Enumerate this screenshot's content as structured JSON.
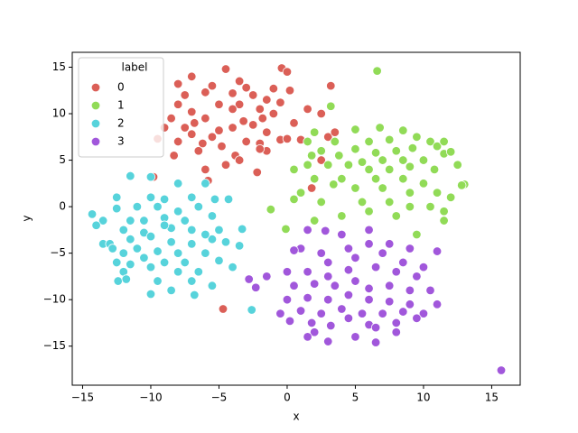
{
  "chart_data": {
    "type": "scatter",
    "xlabel": "x",
    "ylabel": "y",
    "xlim": [
      -15.76,
      17.09
    ],
    "ylim": [
      -19.2,
      16.6
    ],
    "xticks": [
      {
        "value": -15,
        "label": "−15"
      },
      {
        "value": -10,
        "label": "−10"
      },
      {
        "value": -5,
        "label": "−5"
      },
      0,
      5,
      10,
      15
    ],
    "yticks": [
      {
        "value": -15,
        "label": "−15"
      },
      {
        "value": -10,
        "label": "−10"
      },
      {
        "value": -5,
        "label": "−5"
      },
      0,
      5,
      10,
      15
    ],
    "grid": false,
    "legend_title": "label",
    "legend_position": "upper left",
    "series": [
      {
        "name": "0",
        "color": "#db5f57",
        "x": [
          -4.5,
          -7,
          -0.4,
          0,
          -3.5,
          -8,
          -5.5,
          -3,
          -1,
          0.2,
          3.2,
          -6,
          -7.5,
          -4,
          -2.5,
          -1.5,
          -8,
          -5,
          -3.5,
          -0.5,
          -7,
          -4,
          -2,
          -1,
          -8.5,
          -6,
          -3.2,
          -1.8,
          2.5,
          -9,
          -7.5,
          -5,
          -4,
          -2.5,
          0.5,
          -7,
          -5.5,
          -3,
          -1.5,
          -9.5,
          -8,
          -6.2,
          -4.8,
          -2,
          -0.5,
          1,
          3,
          -8.3,
          -6.5,
          -3.8,
          -1.5,
          -4.5,
          -6,
          -3.5,
          -2.2,
          -5.8,
          -9.8,
          1.8,
          2.5,
          3.5,
          -4.7,
          -2,
          0,
          1.5,
          -6.8
        ],
        "values": [
          14.8,
          14,
          14.9,
          14.5,
          13.5,
          13.2,
          13,
          12.8,
          12.7,
          12.5,
          13,
          12.3,
          12,
          12.2,
          12,
          11.5,
          11,
          11,
          11,
          11.2,
          10.2,
          10.5,
          10.5,
          10,
          9.5,
          9.5,
          9.2,
          9.5,
          10,
          8.5,
          8.5,
          8.2,
          8.5,
          8.8,
          9,
          7.8,
          7.5,
          7,
          8,
          7.3,
          7,
          6.8,
          6.5,
          6.8,
          7.2,
          7.2,
          7.5,
          5.5,
          6,
          5.5,
          6,
          4.5,
          4,
          5,
          3.7,
          2.8,
          3.2,
          2,
          5,
          8,
          -11,
          6.2,
          7.3,
          10.5,
          9
        ]
      },
      {
        "name": "1",
        "color": "#91db57",
        "x": [
          6.6,
          3.2,
          5,
          6.8,
          2,
          8.5,
          1.5,
          3.5,
          6,
          7.5,
          9.5,
          10.5,
          11,
          11.5,
          2.5,
          5,
          6.5,
          8,
          9.2,
          11.5,
          12,
          1.8,
          3.8,
          5.5,
          7,
          8.5,
          10,
          12.5,
          0.5,
          3,
          4.5,
          6,
          7.5,
          9,
          10.8,
          2,
          4,
          6.5,
          8.5,
          10,
          13,
          12.8,
          3.4,
          5,
          7,
          9,
          11,
          12,
          1,
          2.5,
          5.5,
          7.5,
          9,
          10.5,
          11.5,
          -1.2,
          -0.1,
          2,
          4,
          6,
          8,
          11.5,
          9.5,
          1.5,
          0.5
        ],
        "values": [
          14.6,
          10.8,
          8.3,
          8.5,
          8,
          8.2,
          7,
          7,
          7,
          7.2,
          7.5,
          7,
          6.5,
          7,
          6,
          6.2,
          5.8,
          6,
          6.3,
          5.7,
          5.9,
          5.5,
          5.5,
          4.8,
          5,
          5,
          5,
          4.5,
          4,
          4.5,
          4.5,
          4,
          4,
          4.3,
          4,
          3,
          3,
          3,
          3,
          2.5,
          2.4,
          2.3,
          2.4,
          2,
          2,
          1.5,
          1.5,
          1,
          1.5,
          0.5,
          0.5,
          0.5,
          0,
          0,
          -0.5,
          -0.3,
          -2.4,
          -1.5,
          -1,
          -0.5,
          -1,
          -1.5,
          -3,
          4.5,
          0.8
        ]
      },
      {
        "name": "2",
        "color": "#57d3db",
        "x": [
          -11.5,
          -10,
          -8,
          -6,
          -12.5,
          -10,
          -9,
          -7,
          -5.3,
          -12.5,
          -11,
          -9.5,
          -8,
          -6.5,
          -14.3,
          -13.5,
          -11.5,
          -9,
          -7.5,
          -5.5,
          -3.3,
          -14,
          -12,
          -10.5,
          -8.5,
          -7,
          -5,
          -13.5,
          -11.5,
          -10,
          -8.5,
          -7,
          -5.5,
          -4.5,
          -13,
          -11,
          -9.5,
          -8,
          -6,
          -10.5,
          -9,
          -7.5,
          -5,
          -12.5,
          -12,
          -11.5,
          -10,
          -8,
          -6.5,
          -4,
          -12,
          -12.4,
          -11.8,
          -9.5,
          -7,
          -5.5,
          -10,
          -8.5,
          -6.8,
          -2.6,
          -4.3,
          -6,
          -9,
          -10.5,
          -3.5,
          -12.8
        ],
        "values": [
          3.3,
          3.2,
          2.5,
          2.5,
          1,
          1,
          0.8,
          1,
          0.8,
          -0.2,
          0,
          0,
          -0.5,
          0,
          -0.8,
          -1.5,
          -1.5,
          -1.2,
          -1.5,
          -1,
          -2.4,
          -2,
          -2.5,
          -2.8,
          -2.3,
          -2.5,
          -2.5,
          -4,
          -3.5,
          -3.2,
          -3.8,
          -4,
          -3.5,
          -3.8,
          -4,
          -4.5,
          -4.8,
          -5,
          -5,
          -5.5,
          -6,
          -6,
          -5.8,
          -6,
          -5,
          -6.2,
          -6.5,
          -7,
          -7,
          -6.5,
          -7,
          -8,
          -7.8,
          -8,
          -8,
          -8.5,
          -9.4,
          -9,
          -9.5,
          -11.1,
          0.8,
          -3,
          -2,
          -1.5,
          -4.2,
          -4.5
        ]
      },
      {
        "name": "3",
        "color": "#a157db",
        "x": [
          1.5,
          1,
          4,
          6,
          2.5,
          4.5,
          6,
          7.5,
          9,
          11,
          3,
          5,
          7,
          8.5,
          10,
          -1.5,
          0,
          1.5,
          3,
          4.5,
          6.5,
          8,
          9.5,
          -2.8,
          -2.3,
          0.5,
          2,
          3.5,
          5,
          6,
          7.5,
          9,
          10.5,
          0,
          1.5,
          3,
          4.5,
          6,
          7.5,
          9,
          11,
          -0.5,
          1,
          2.5,
          4,
          5.5,
          7,
          8.5,
          10,
          0.2,
          1.8,
          3.2,
          4.5,
          6,
          8,
          2,
          3,
          5,
          6.5,
          6.5,
          8,
          9.5,
          1.5,
          15.7,
          0.5,
          2.8
        ],
        "values": [
          -2.5,
          -4.5,
          -3,
          -2.5,
          -5,
          -4.5,
          -4,
          -4,
          -4.5,
          -4.8,
          -6,
          -5.5,
          -5,
          -6,
          -6.5,
          -7.5,
          -7,
          -7,
          -7.5,
          -6.8,
          -6.5,
          -7,
          -7.5,
          -7.8,
          -8.7,
          -8.5,
          -8.3,
          -8.5,
          -8,
          -8.8,
          -8.5,
          -9,
          -9,
          -10,
          -9.8,
          -10,
          -9.5,
          -10,
          -10.2,
          -10.5,
          -10.5,
          -11.5,
          -11.2,
          -11.5,
          -11,
          -11.5,
          -11.5,
          -11.3,
          -11.5,
          -12.3,
          -12.5,
          -12.8,
          -12,
          -12.7,
          -12.5,
          -13.5,
          -14.5,
          -14,
          -13,
          -14.6,
          -13.5,
          -12,
          -14,
          -17.6,
          -4.7,
          -2.6
        ]
      }
    ]
  }
}
